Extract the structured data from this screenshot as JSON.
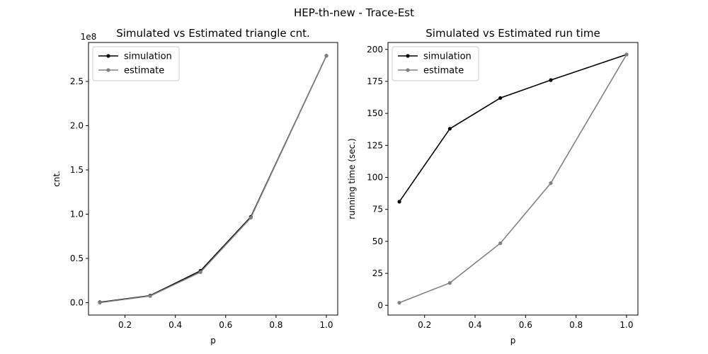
{
  "figure_title": "HEP-th-new - Trace-Est",
  "colors": {
    "simulation": "#000000",
    "estimate": "#808080",
    "axes": "#000000",
    "legend_border": "#cccccc"
  },
  "chart_data": [
    {
      "type": "line",
      "title": "Simulated vs Estimated triangle cnt.",
      "xlabel": "p",
      "ylabel": "cnt.",
      "offset_label": "1e8",
      "x": [
        0.1,
        0.3,
        0.5,
        0.7,
        1.0
      ],
      "xlim": [
        0.055,
        1.045
      ],
      "ylim": [
        -0.14,
        2.94
      ],
      "xticks": [
        0.2,
        0.4,
        0.6,
        0.8,
        1.0
      ],
      "xtick_labels": [
        "0.2",
        "0.4",
        "0.6",
        "0.8",
        "1.0"
      ],
      "yticks": [
        0,
        0.5,
        1.0,
        1.5,
        2.0,
        2.5
      ],
      "ytick_labels": [
        "0.0",
        "0.5",
        "1.0",
        "1.5",
        "2.0",
        "2.5"
      ],
      "legend_position": "upper-left",
      "grid": false,
      "series": [
        {
          "name": "simulation",
          "values": [
            0.005,
            0.08,
            0.36,
            0.97,
            2.79
          ]
        },
        {
          "name": "estimate",
          "values": [
            0.0,
            0.075,
            0.345,
            0.96,
            2.79
          ]
        }
      ]
    },
    {
      "type": "line",
      "title": "Simulated vs Estimated run time",
      "xlabel": "p",
      "ylabel": "running time (sec.)",
      "x": [
        0.1,
        0.3,
        0.5,
        0.7,
        1.0
      ],
      "xlim": [
        0.055,
        1.045
      ],
      "ylim": [
        -7.6,
        205.4
      ],
      "xticks": [
        0.2,
        0.4,
        0.6,
        0.8,
        1.0
      ],
      "xtick_labels": [
        "0.2",
        "0.4",
        "0.6",
        "0.8",
        "1.0"
      ],
      "yticks": [
        0,
        25,
        50,
        75,
        100,
        125,
        150,
        175,
        200
      ],
      "ytick_labels": [
        "0",
        "25",
        "50",
        "75",
        "100",
        "125",
        "150",
        "175",
        "200"
      ],
      "legend_position": "upper-left",
      "grid": false,
      "series": [
        {
          "name": "simulation",
          "values": [
            81,
            138,
            162,
            176,
            196
          ]
        },
        {
          "name": "estimate",
          "values": [
            2,
            17.5,
            48.5,
            95.5,
            196
          ]
        }
      ]
    }
  ]
}
